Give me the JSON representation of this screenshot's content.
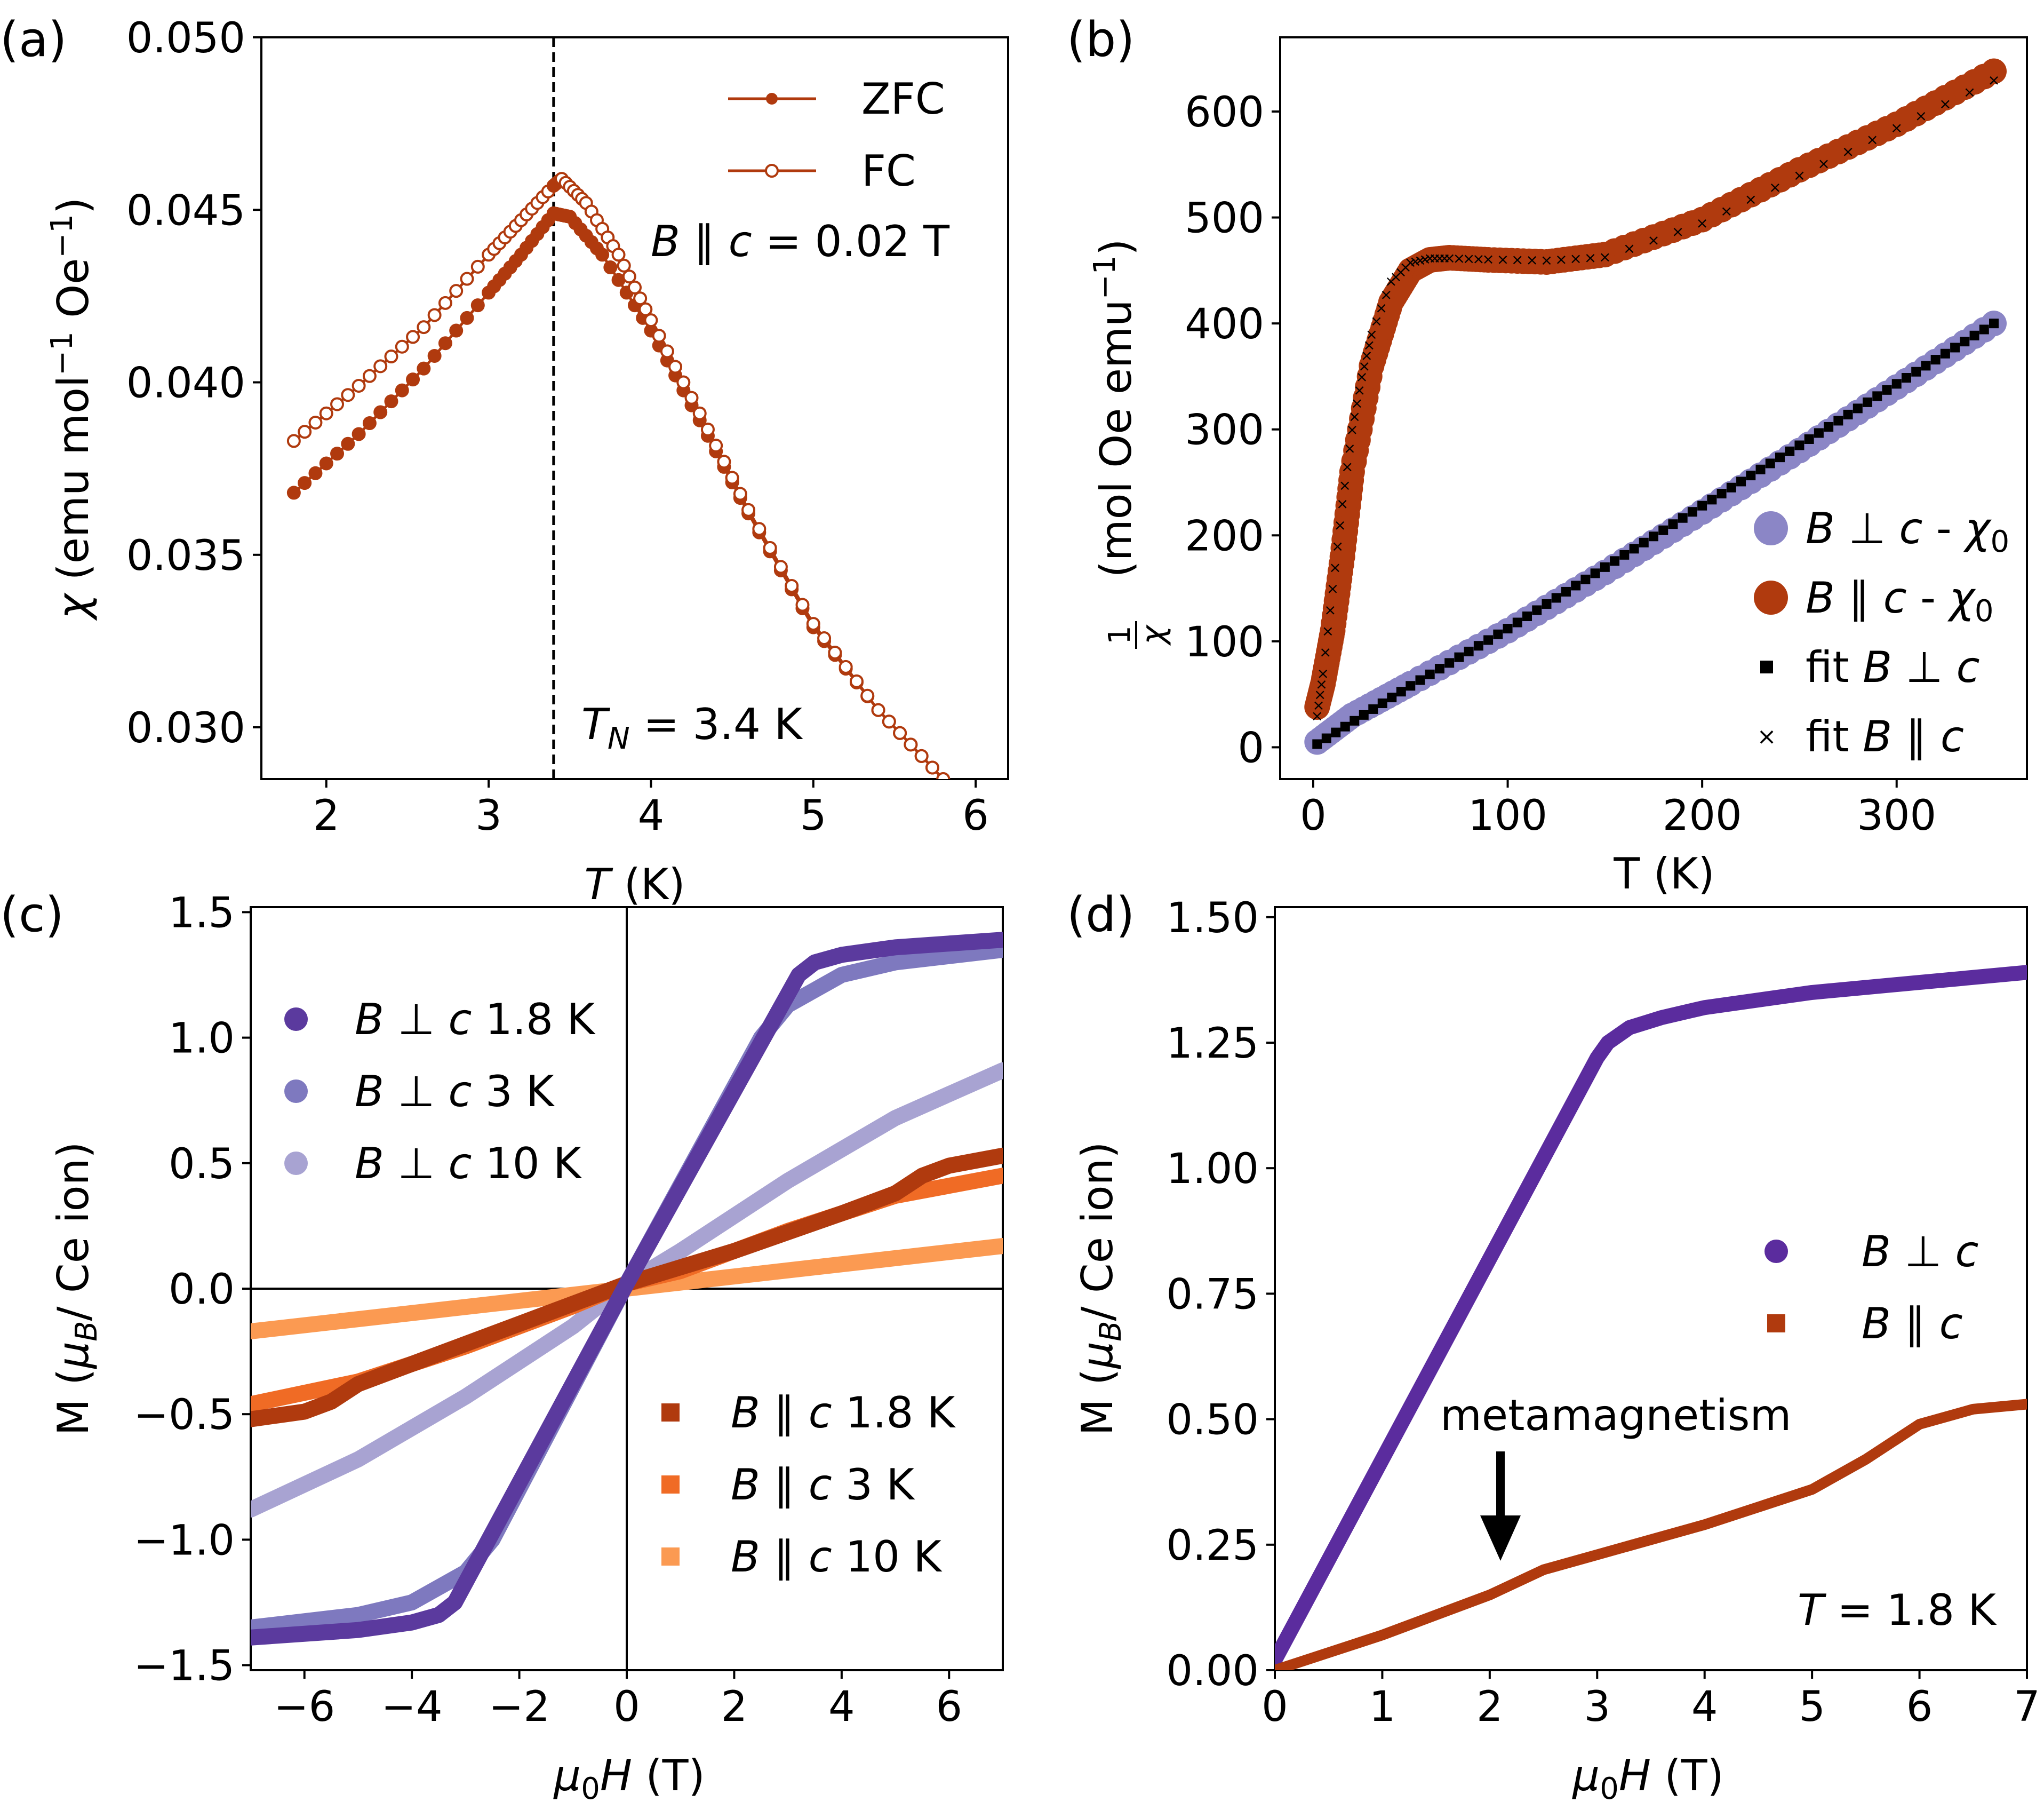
{
  "colors": {
    "zfc": "#b03a0e",
    "b_perp_chi": "#8b86c6",
    "b_par_chi": "#b03a0e",
    "fit": "#000000",
    "perp_1p8": "#5b3a9e",
    "perp_3": "#7e79bf",
    "perp_10": "#a8a3d2",
    "par_1p8": "#b03a0e",
    "par_3": "#f06b25",
    "par_10": "#fb9a52",
    "d_perp": "#5b2c9e",
    "d_par": "#b03a0e"
  },
  "chart_data": [
    {
      "id": "a",
      "panel_label": "(a)",
      "type": "line",
      "xlabel": "T (K)",
      "ylabel": "χ (emu mol⁻¹ Oe⁻¹)",
      "xlim": [
        1.6,
        6.2
      ],
      "ylim": [
        0.0285,
        0.05
      ],
      "xticks": [
        "2",
        "3",
        "4",
        "5",
        "6"
      ],
      "yticks": [
        "0.030",
        "0.035",
        "0.040",
        "0.045",
        "0.050"
      ],
      "ytick_values": [
        0.03,
        0.035,
        0.04,
        0.045,
        0.05
      ],
      "xtick_values": [
        2,
        3,
        4,
        5,
        6
      ],
      "series": [
        {
          "name": "ZFC",
          "marker": "filled-circle",
          "x": [
            1.8,
            2.2,
            2.6,
            3.0,
            3.2,
            3.4,
            3.5,
            3.7,
            4.0,
            4.3,
            4.6,
            5.0,
            5.4,
            5.8
          ],
          "y": [
            0.0368,
            0.0385,
            0.0404,
            0.0426,
            0.0437,
            0.0449,
            0.0448,
            0.0437,
            0.0415,
            0.0389,
            0.0362,
            0.0329,
            0.0305,
            0.0285
          ]
        },
        {
          "name": "FC",
          "marker": "open-circle",
          "x": [
            1.8,
            2.2,
            2.6,
            3.0,
            3.2,
            3.4,
            3.45,
            3.6,
            3.8,
            4.0,
            4.3,
            4.6,
            5.0,
            5.4,
            5.8
          ],
          "y": [
            0.0383,
            0.0399,
            0.0416,
            0.0437,
            0.0447,
            0.0457,
            0.0459,
            0.0452,
            0.0437,
            0.0418,
            0.0391,
            0.0363,
            0.033,
            0.0305,
            0.0285
          ]
        }
      ],
      "vline": 3.4,
      "annotations": {
        "field": "B ∥ c = 0.02 T",
        "tn": "T_N = 3.4 K"
      }
    },
    {
      "id": "b",
      "panel_label": "(b)",
      "type": "scatter",
      "xlabel": "T (K)",
      "ylabel": "1/χ (mol Oe emu⁻¹)",
      "xlim": [
        -17,
        367
      ],
      "ylim": [
        -30,
        670
      ],
      "xticks": [
        "0",
        "100",
        "200",
        "300"
      ],
      "xtick_values": [
        0,
        100,
        200,
        300
      ],
      "yticks": [
        "0",
        "100",
        "200",
        "300",
        "400",
        "500",
        "600"
      ],
      "ytick_values": [
        0,
        100,
        200,
        300,
        400,
        500,
        600
      ],
      "series": [
        {
          "name": "B ⊥ c - χ0",
          "x": [
            2,
            20,
            50,
            100,
            150,
            200,
            250,
            300,
            350
          ],
          "y": [
            5,
            30,
            60,
            110,
            165,
            222,
            280,
            340,
            400
          ]
        },
        {
          "name": "B ∥ c - χ0",
          "x": [
            2,
            5,
            10,
            15,
            20,
            30,
            40,
            50,
            60,
            70,
            90,
            120,
            150,
            200,
            250,
            300,
            350
          ],
          "y": [
            38,
            60,
            110,
            180,
            260,
            360,
            420,
            450,
            460,
            462,
            460,
            458,
            465,
            498,
            545,
            588,
            638
          ]
        },
        {
          "name": "fit B ⊥ c",
          "x": [
            2,
            50,
            100,
            150,
            200,
            250,
            300,
            350
          ],
          "y": [
            3,
            58,
            112,
            170,
            228,
            285,
            343,
            400
          ]
        },
        {
          "name": "fit B ∥ c",
          "x": [
            2,
            5,
            10,
            15,
            20,
            25,
            30,
            40,
            50,
            60,
            70,
            90,
            120,
            150,
            200,
            250,
            300,
            350
          ],
          "y": [
            30,
            70,
            150,
            230,
            300,
            350,
            390,
            440,
            458,
            462,
            462,
            461,
            460,
            463,
            495,
            540,
            585,
            630
          ]
        }
      ]
    },
    {
      "id": "c",
      "panel_label": "(c)",
      "type": "line",
      "xlabel": "μ0H (T)",
      "ylabel": "M (μB/ Ce ion)",
      "xlim": [
        -7,
        7
      ],
      "ylim": [
        -1.52,
        1.52
      ],
      "xticks": [
        "−6",
        "−4",
        "−2",
        "0",
        "2",
        "4",
        "6"
      ],
      "xtick_values": [
        -6,
        -4,
        -2,
        0,
        2,
        4,
        6
      ],
      "yticks": [
        "−1.5",
        "−1.0",
        "−0.5",
        "0.0",
        "0.5",
        "1.0",
        "1.5"
      ],
      "ytick_values": [
        -1.5,
        -1.0,
        -0.5,
        0.0,
        0.5,
        1.0,
        1.5
      ],
      "series": [
        {
          "name": "B ⊥ c 1.8 K",
          "x": [
            -7,
            -5,
            -4,
            -3.5,
            -3.2,
            0,
            3.2,
            3.5,
            4,
            5,
            7
          ],
          "y": [
            -1.39,
            -1.36,
            -1.33,
            -1.3,
            -1.25,
            0.02,
            1.25,
            1.3,
            1.33,
            1.36,
            1.39
          ]
        },
        {
          "name": "B ⊥ c 3 K",
          "x": [
            -7,
            -5,
            -4,
            -3,
            -2.5,
            0,
            2.5,
            3,
            4,
            5,
            7
          ],
          "y": [
            -1.35,
            -1.3,
            -1.25,
            -1.13,
            -1.0,
            0.02,
            1.0,
            1.13,
            1.25,
            1.3,
            1.35
          ]
        },
        {
          "name": "B ⊥ c 10 K",
          "x": [
            -7,
            -5,
            -3,
            -1,
            0,
            1,
            3,
            5,
            7
          ],
          "y": [
            -0.88,
            -0.68,
            -0.43,
            -0.15,
            0.02,
            0.15,
            0.43,
            0.68,
            0.87
          ]
        },
        {
          "name": "B ∥ c 1.8 K",
          "x": [
            -7,
            -6,
            -5.5,
            -5,
            -4,
            -2,
            0,
            2,
            4,
            5,
            5.5,
            6,
            7
          ],
          "y": [
            -0.52,
            -0.49,
            -0.45,
            -0.38,
            -0.3,
            -0.14,
            0.02,
            0.15,
            0.3,
            0.38,
            0.45,
            0.49,
            0.53
          ]
        },
        {
          "name": "B ∥ c 3 K",
          "x": [
            -7,
            -5,
            -3,
            -1,
            0,
            1,
            3,
            5,
            7
          ],
          "y": [
            -0.46,
            -0.37,
            -0.23,
            -0.07,
            0.02,
            0.07,
            0.23,
            0.37,
            0.45
          ]
        },
        {
          "name": "B ∥ c 10 K",
          "x": [
            -7,
            0,
            7
          ],
          "y": [
            -0.17,
            0.0,
            0.17
          ]
        }
      ]
    },
    {
      "id": "d",
      "panel_label": "(d)",
      "type": "line",
      "xlabel": "μ0H (T)",
      "ylabel": "M (μB/ Ce ion)",
      "xlim": [
        0,
        7
      ],
      "ylim": [
        0.0,
        1.52
      ],
      "xticks": [
        "0",
        "1",
        "2",
        "3",
        "4",
        "5",
        "6",
        "7"
      ],
      "xtick_values": [
        0,
        1,
        2,
        3,
        4,
        5,
        6,
        7
      ],
      "yticks": [
        "0.00",
        "0.25",
        "0.50",
        "0.75",
        "1.00",
        "1.25",
        "1.50"
      ],
      "ytick_values": [
        0.0,
        0.25,
        0.5,
        0.75,
        1.0,
        1.25,
        1.5
      ],
      "series": [
        {
          "name": "B ⊥ c",
          "x": [
            0,
            3.0,
            3.1,
            3.3,
            3.6,
            4,
            5,
            6,
            7
          ],
          "y": [
            0.02,
            1.22,
            1.25,
            1.28,
            1.3,
            1.32,
            1.35,
            1.37,
            1.39
          ]
        },
        {
          "name": "B ∥ c",
          "x": [
            0,
            1,
            2.0,
            2.1,
            2.5,
            3,
            4,
            5,
            5.5,
            6,
            6.5,
            7
          ],
          "y": [
            0.0,
            0.07,
            0.15,
            0.16,
            0.2,
            0.23,
            0.29,
            0.36,
            0.42,
            0.49,
            0.52,
            0.53
          ]
        }
      ],
      "annotations": {
        "arrow_label": "metamagnetism",
        "arrow_x": 2.1,
        "temp": "T = 1.8 K"
      }
    }
  ],
  "legends": {
    "a": [
      "ZFC",
      "FC"
    ],
    "b": [
      "B ⊥ c - χ0",
      "B ∥ c - χ0",
      "fit B ⊥ c",
      "fit B ∥ c"
    ],
    "c_top": [
      "B ⊥ c 1.8 K",
      "B ⊥ c 3 K",
      "B ⊥ c 10 K"
    ],
    "c_bottom": [
      "B ∥ c 1.8 K",
      "B ∥ c 3 K",
      "B ∥ c 10 K"
    ],
    "d": [
      "B ⊥ c",
      "B ∥ c"
    ]
  }
}
